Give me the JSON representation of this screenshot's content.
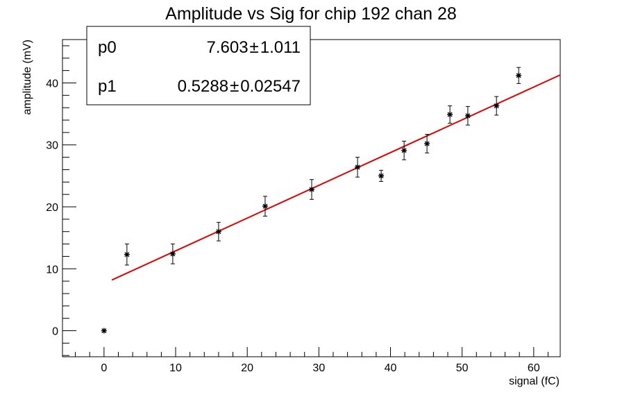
{
  "chart_data": {
    "type": "scatter",
    "title": "Amplitude vs Sig for chip 192 chan 28",
    "xlabel": "signal (fC)",
    "ylabel": "amplitude (mV)",
    "xlim": [
      -5.8,
      63.7
    ],
    "ylim": [
      -4.2,
      47
    ],
    "x_ticks": [
      0,
      10,
      20,
      30,
      40,
      50,
      60
    ],
    "y_ticks": [
      0,
      10,
      20,
      30,
      40
    ],
    "grid": false,
    "series": [
      {
        "points": [
          {
            "x": 0,
            "y": 0,
            "err": 0
          },
          {
            "x": 3.2,
            "y": 12.3,
            "err": 1.7
          },
          {
            "x": 9.6,
            "y": 12.4,
            "err": 1.6
          },
          {
            "x": 16.0,
            "y": 16.0,
            "err": 1.5
          },
          {
            "x": 22.5,
            "y": 20.1,
            "err": 1.6
          },
          {
            "x": 29.0,
            "y": 22.8,
            "err": 1.6
          },
          {
            "x": 35.4,
            "y": 26.4,
            "err": 1.6
          },
          {
            "x": 38.7,
            "y": 25.0,
            "err": 0.9
          },
          {
            "x": 41.9,
            "y": 29.1,
            "err": 1.5
          },
          {
            "x": 45.1,
            "y": 30.2,
            "err": 1.5
          },
          {
            "x": 48.3,
            "y": 34.9,
            "err": 1.4
          },
          {
            "x": 50.8,
            "y": 34.7,
            "err": 1.5
          },
          {
            "x": 54.8,
            "y": 36.3,
            "err": 1.5
          },
          {
            "x": 57.9,
            "y": 41.2,
            "err": 1.3
          }
        ]
      }
    ],
    "fit": {
      "p0": 7.603,
      "p1": 0.5288,
      "x_range": [
        1.1,
        63.7
      ],
      "color": "#e00000"
    },
    "stats_box": {
      "position": "top-left",
      "rows": [
        {
          "name": "p0",
          "value": "7.603",
          "error": "1.011"
        },
        {
          "name": "p1",
          "value": "0.5288",
          "error": "0.02547"
        }
      ],
      "pm_symbol": "±"
    }
  }
}
